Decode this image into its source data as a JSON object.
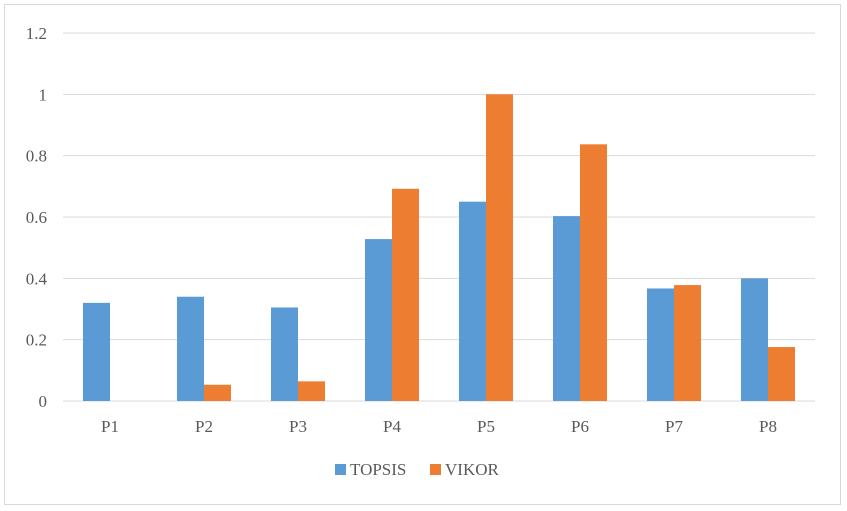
{
  "chart_data": {
    "type": "bar",
    "categories": [
      "P1",
      "P2",
      "P3",
      "P4",
      "P5",
      "P6",
      "P7",
      "P8"
    ],
    "series": [
      {
        "name": "TOPSIS",
        "color": "#5b9bd5",
        "values": [
          0.32,
          0.34,
          0.305,
          0.528,
          0.65,
          0.603,
          0.367,
          0.4
        ]
      },
      {
        "name": "VIKOR",
        "color": "#ed7d31",
        "values": [
          0,
          0.053,
          0.064,
          0.692,
          1.0,
          0.837,
          0.378,
          0.176
        ]
      }
    ],
    "ylim": [
      0,
      1.2
    ],
    "yticks": [
      "0",
      "0.2",
      "0.4",
      "0.6",
      "0.8",
      "1",
      "1.2"
    ],
    "ytick_values": [
      0,
      0.2,
      0.4,
      0.6,
      0.8,
      1.0,
      1.2
    ],
    "grid": true,
    "legend": "bottom",
    "title": "",
    "xlabel": "",
    "ylabel": "",
    "gridline_color": "#d9d9d9"
  }
}
